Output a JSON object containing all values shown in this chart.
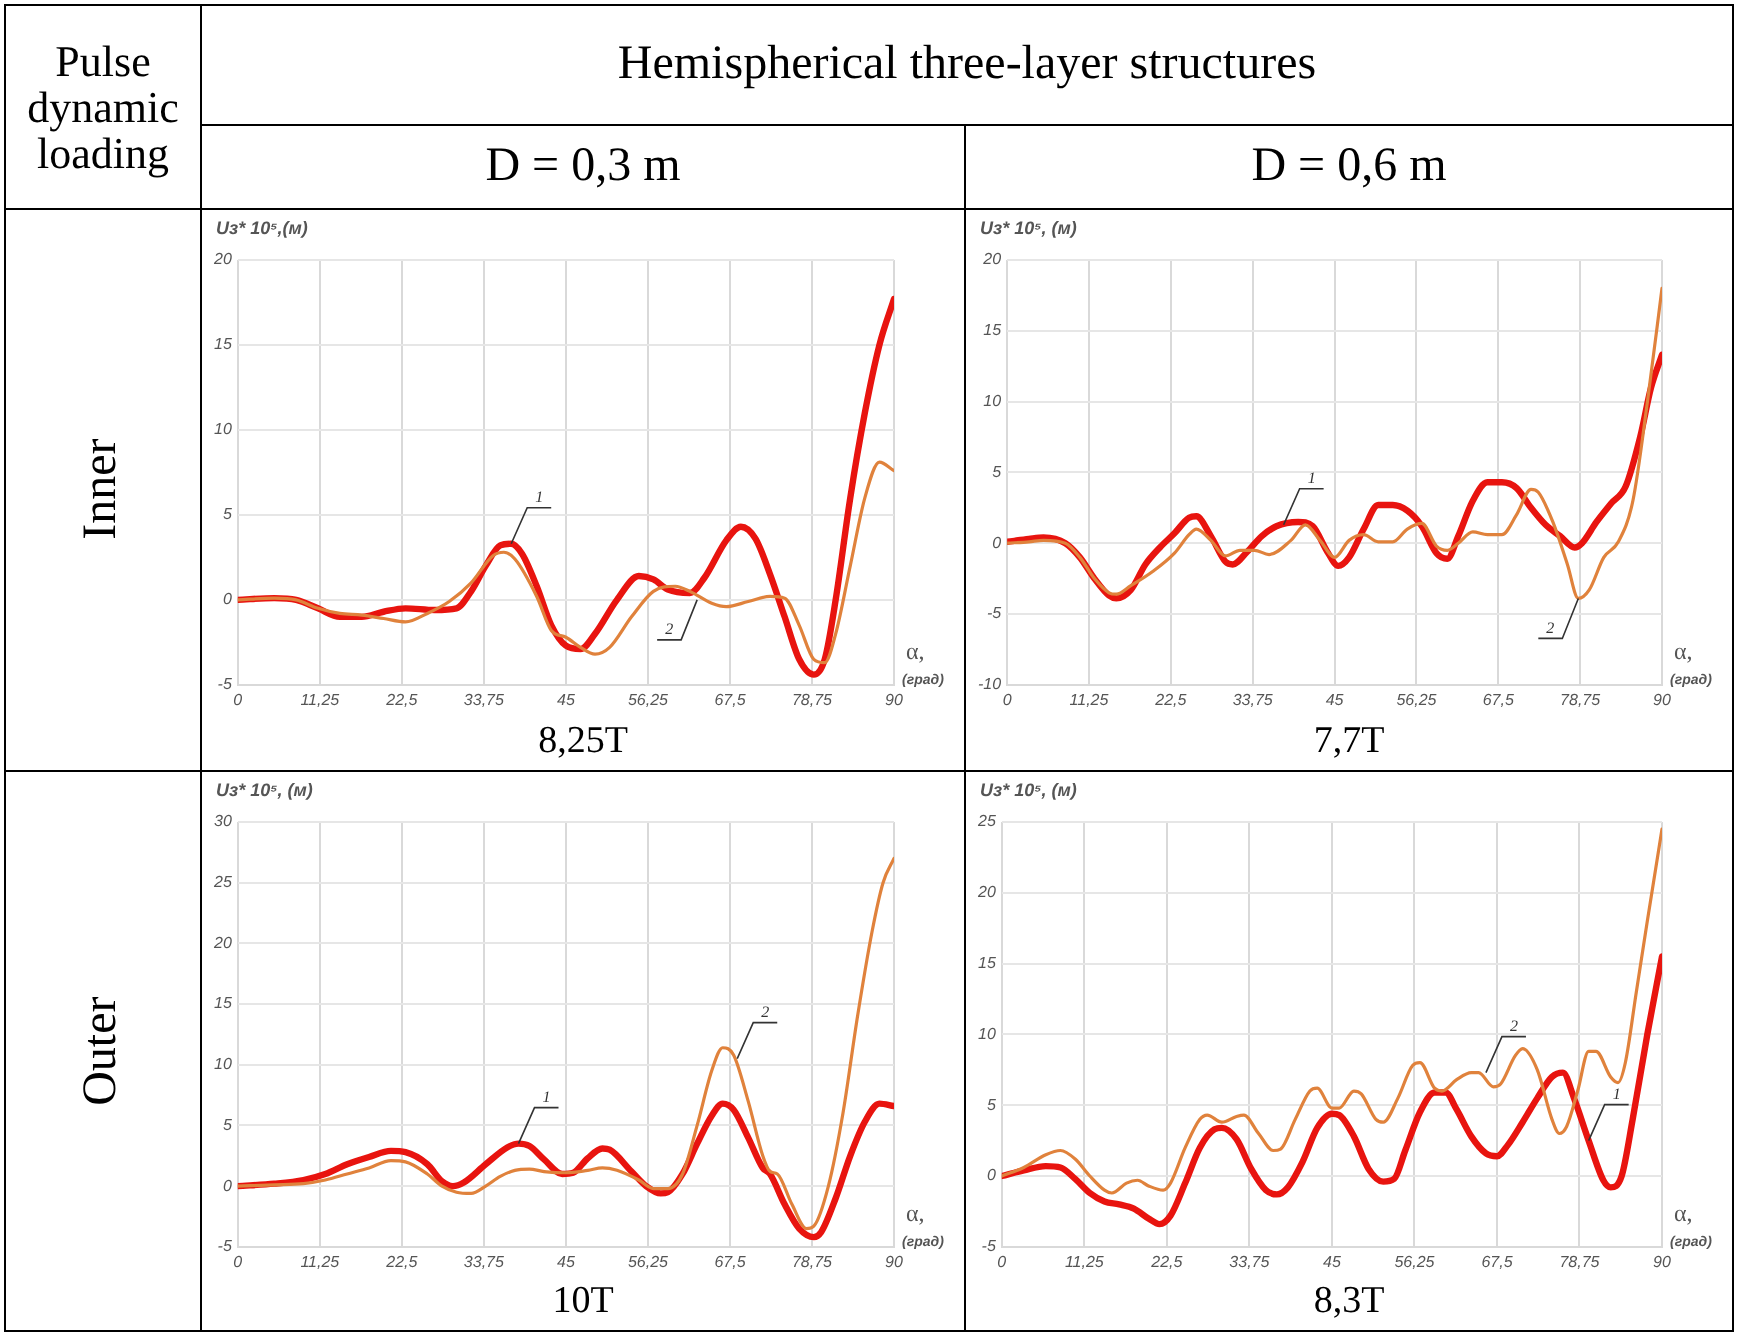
{
  "chart_data": [
    {
      "type": "line",
      "title": "D = 0,3 m",
      "subtitle": "8,25T",
      "ylabel": "Uз* 10⁵,(м)",
      "xlabel": "α, (град)",
      "xlim": [
        0,
        90
      ],
      "ylim": [
        -5,
        20
      ],
      "xticks": [
        0,
        {
          "value": 11.25,
          "label": "11,25"
        },
        {
          "value": 22.5,
          "label": "22,5"
        },
        {
          "value": 33.75,
          "label": "33,75"
        },
        45,
        {
          "value": 56.25,
          "label": "56,25"
        },
        {
          "value": 67.5,
          "label": "67,5"
        },
        {
          "value": 78.75,
          "label": "78,75"
        },
        90
      ],
      "yticks": [
        -5,
        0,
        5,
        10,
        15,
        20
      ],
      "grid": true,
      "legend": false,
      "series": [
        {
          "color": "#e8140f",
          "x": [
            0,
            5,
            8,
            11,
            14,
            17,
            20,
            23,
            27,
            30,
            32,
            34,
            36,
            37.5,
            39,
            41,
            43,
            45,
            47,
            49,
            52,
            55,
            57,
            59,
            62,
            64,
            67,
            69,
            71,
            73,
            75,
            77,
            79,
            80.5,
            82,
            84,
            86,
            88,
            90
          ],
          "values": [
            0,
            0.1,
            0,
            -0.5,
            -1,
            -1,
            -0.7,
            -0.5,
            -0.6,
            -0.5,
            0.5,
            2,
            3.2,
            3.3,
            2.7,
            0.8,
            -1.5,
            -2.7,
            -2.9,
            -2,
            0,
            1.4,
            1.2,
            0.6,
            0.4,
            1.3,
            3.5,
            4.3,
            3.6,
            1.5,
            -1,
            -3.5,
            -4.4,
            -3.5,
            0,
            6,
            11,
            15,
            17.7
          ]
        },
        {
          "color": "#e0823c",
          "x": [
            0,
            5,
            8,
            11,
            14,
            17,
            20,
            23,
            26,
            29,
            32,
            35,
            36.5,
            38,
            41,
            43,
            45,
            47,
            49,
            51,
            54,
            57,
            60,
            62,
            65,
            67,
            70,
            73,
            75,
            77,
            79,
            80.5,
            82,
            84,
            86,
            88,
            90
          ],
          "values": [
            0,
            0.1,
            0,
            -0.5,
            -0.8,
            -0.9,
            -1.1,
            -1.3,
            -0.8,
            -0.1,
            1,
            2.6,
            2.8,
            2.4,
            0.2,
            -1.8,
            -2.2,
            -2.8,
            -3.2,
            -2.8,
            -1,
            0.5,
            0.8,
            0.5,
            -0.2,
            -0.4,
            -0.1,
            0.2,
            0.1,
            -1.5,
            -3.5,
            -3.7,
            -2,
            2,
            6,
            8.1,
            7.6
          ]
        }
      ],
      "annotations": [
        {
          "text": "1",
          "x": 37.5,
          "y": 3.3
        },
        {
          "text": "2",
          "x": 63,
          "y": 0
        },
        "Pulse dynamic loading",
        "Hemispherical three-layer structures",
        "Inner"
      ]
    },
    {
      "type": "line",
      "title": "D = 0,6 m",
      "subtitle": "7,7T",
      "ylabel": "Uз* 10⁵, (м)",
      "xlabel": "α, (град)",
      "xlim": [
        0,
        90
      ],
      "ylim": [
        -10,
        20
      ],
      "xticks": [
        0,
        {
          "value": 11.25,
          "label": "11,25"
        },
        {
          "value": 22.5,
          "label": "22,5"
        },
        {
          "value": 33.75,
          "label": "33,75"
        },
        45,
        {
          "value": 56.25,
          "label": "56,25"
        },
        {
          "value": 67.5,
          "label": "67,5"
        },
        {
          "value": 78.75,
          "label": "78,75"
        },
        90
      ],
      "yticks": [
        -10,
        -5,
        0,
        5,
        10,
        15,
        20
      ],
      "grid": true,
      "legend": false,
      "series": [
        {
          "color": "#e8140f",
          "x": [
            0,
            3,
            5,
            8,
            10,
            12,
            14,
            15,
            17,
            19,
            21,
            23,
            25,
            26,
            28,
            30,
            31,
            33,
            35,
            37,
            40,
            42,
            44,
            45.5,
            47,
            49,
            51,
            53,
            55,
            57,
            59,
            60.5,
            62,
            64,
            66,
            68,
            70,
            72,
            74,
            76,
            78,
            79,
            81,
            83,
            85,
            87,
            88.5,
            90
          ],
          "values": [
            0.1,
            0.3,
            0.4,
            0,
            -1,
            -2.5,
            -3.7,
            -3.9,
            -3.3,
            -1.5,
            -0.3,
            0.7,
            1.8,
            1.9,
            0.5,
            -1.3,
            -1.5,
            -0.6,
            0.5,
            1.2,
            1.5,
            1.2,
            -0.6,
            -1.6,
            -1,
            1,
            2.7,
            2.7,
            2.3,
            1.2,
            -0.7,
            -1.1,
            0.5,
            3,
            4.3,
            4.3,
            3.9,
            2.5,
            1.3,
            0.5,
            -0.3,
            0,
            1.5,
            2.8,
            4,
            7.5,
            11,
            13.3
          ]
        },
        {
          "color": "#e0823c",
          "x": [
            0,
            3,
            5,
            8,
            10,
            12,
            14,
            15,
            17,
            20,
            23,
            25,
            26,
            28,
            30,
            32,
            34,
            36,
            39,
            41,
            43,
            45,
            47,
            49,
            51,
            53,
            55,
            57,
            59,
            60.5,
            62,
            64,
            66,
            68,
            70,
            72,
            73,
            75,
            77,
            78.5,
            80,
            82,
            84,
            86,
            88,
            90
          ],
          "values": [
            0,
            0.1,
            0.2,
            0,
            -1,
            -2.5,
            -3.5,
            -3.6,
            -3,
            -2,
            -0.7,
            0.6,
            1,
            0.2,
            -0.9,
            -0.5,
            -0.5,
            -0.8,
            0.2,
            1.3,
            0.2,
            -1,
            0.2,
            0.6,
            0.1,
            0.1,
            1,
            1.4,
            -0.2,
            -0.5,
            0,
            0.8,
            0.6,
            0.6,
            2,
            3.8,
            3.6,
            1.5,
            -1.5,
            -3.9,
            -3.3,
            -1,
            0.1,
            3,
            10,
            18
          ]
        }
      ],
      "annotations": [
        {
          "text": "1",
          "x": 38,
          "y": 1.3
        },
        {
          "text": "2",
          "x": 78.5,
          "y": -3.9
        }
      ]
    },
    {
      "type": "line",
      "subtitle": "10T",
      "ylabel": "Uз* 10⁵, (м)",
      "xlabel": "α, (град)",
      "xlim": [
        0,
        90
      ],
      "ylim": [
        -5,
        30
      ],
      "xticks": [
        0,
        {
          "value": 11.25,
          "label": "11,25"
        },
        {
          "value": 22.5,
          "label": "22,5"
        },
        {
          "value": 33.75,
          "label": "33,75"
        },
        45,
        {
          "value": 56.25,
          "label": "56,25"
        },
        {
          "value": 67.5,
          "label": "67,5"
        },
        {
          "value": 78.75,
          "label": "78,75"
        },
        90
      ],
      "yticks": [
        -5,
        0,
        5,
        10,
        15,
        20,
        25,
        30
      ],
      "grid": true,
      "legend": false,
      "series": [
        {
          "color": "#e8140f",
          "x": [
            0,
            5,
            9,
            12,
            15,
            18,
            21,
            23,
            26,
            28,
            29.5,
            31,
            34,
            37,
            38.5,
            40,
            42,
            44.5,
            46,
            48,
            50,
            51,
            54,
            56,
            58,
            59,
            61,
            63,
            65,
            66.5,
            68,
            70,
            72,
            73,
            75,
            77,
            79,
            80,
            82,
            84,
            86,
            88,
            90
          ],
          "values": [
            0,
            0.2,
            0.5,
            1,
            1.8,
            2.4,
            2.9,
            2.8,
            1.8,
            0.4,
            0,
            0.3,
            1.8,
            3.2,
            3.5,
            3.3,
            2.2,
            1,
            1.1,
            2.3,
            3.1,
            3,
            1.2,
            0,
            -0.6,
            -0.5,
            1,
            3.5,
            5.8,
            6.8,
            6.3,
            4,
            1.5,
            1,
            -1.5,
            -3.5,
            -4.2,
            -3.8,
            -1,
            2.5,
            5.3,
            6.8,
            6.6
          ]
        },
        {
          "color": "#e0823c",
          "x": [
            0,
            5,
            9,
            12,
            15,
            18,
            21,
            23,
            26,
            28,
            30,
            32,
            34,
            36,
            38,
            40,
            42,
            45,
            48,
            50,
            52,
            55,
            57,
            59,
            61,
            63,
            65,
            66.5,
            68,
            70,
            72,
            73,
            74,
            76,
            78,
            79,
            81,
            83,
            85,
            87,
            88.5,
            90
          ],
          "values": [
            0,
            0.1,
            0.2,
            0.5,
            1,
            1.5,
            2.1,
            2,
            1,
            0,
            -0.5,
            -0.6,
            0,
            0.8,
            1.3,
            1.4,
            1.2,
            1.1,
            1.3,
            1.5,
            1.3,
            0.5,
            -0.2,
            -0.2,
            1,
            5,
            9.5,
            11.4,
            10.8,
            7,
            2.5,
            1.2,
            1,
            -1.5,
            -3.5,
            -3.3,
            0,
            6,
            14,
            21,
            25,
            27
          ]
        }
      ],
      "annotations": [
        {
          "text": "1",
          "x": 38.5,
          "y": 3.5
        },
        {
          "text": "2",
          "x": 68.5,
          "y": 10.5
        },
        "Outer"
      ]
    },
    {
      "type": "line",
      "subtitle": "8,3T",
      "ylabel": "Uз* 10⁵, (м)",
      "xlabel": "α, (град)",
      "xlim": [
        0,
        90
      ],
      "ylim": [
        -5,
        25
      ],
      "xticks": [
        0,
        {
          "value": 11.25,
          "label": "11,25"
        },
        {
          "value": 22.5,
          "label": "22,5"
        },
        {
          "value": 33.75,
          "label": "33,75"
        },
        45,
        {
          "value": 56.25,
          "label": "56,25"
        },
        {
          "value": 67.5,
          "label": "67,5"
        },
        {
          "value": 78.75,
          "label": "78,75"
        },
        90
      ],
      "yticks": [
        -5,
        0,
        5,
        10,
        15,
        20,
        25
      ],
      "grid": true,
      "legend": false,
      "series": [
        {
          "color": "#e8140f",
          "x": [
            0,
            3,
            6,
            8,
            10,
            12,
            14,
            16,
            18,
            20,
            21.5,
            23,
            25,
            27,
            29,
            30,
            32,
            34,
            36,
            37.5,
            39,
            41,
            43,
            45,
            46,
            48,
            50,
            52,
            53.5,
            55,
            57,
            59,
            60.5,
            62,
            64,
            66,
            67.5,
            69,
            71,
            73,
            75,
            76.5,
            78,
            80,
            82,
            83,
            84.5,
            86,
            88,
            90
          ],
          "values": [
            0,
            0.4,
            0.7,
            0.6,
            -0.2,
            -1.2,
            -1.8,
            -2,
            -2.3,
            -3,
            -3.4,
            -2.8,
            -0.5,
            2,
            3.3,
            3.4,
            2.6,
            0.5,
            -1,
            -1.3,
            -0.8,
            1,
            3.4,
            4.4,
            4.3,
            2.8,
            0.5,
            -0.4,
            -0.2,
            1.8,
            4.5,
            5.9,
            5.9,
            4.7,
            2.8,
            1.6,
            1.4,
            2.2,
            3.8,
            5.5,
            7,
            7.3,
            5.5,
            2.5,
            -0.3,
            -0.8,
            0,
            4,
            10,
            15.5
          ]
        },
        {
          "color": "#e0823c",
          "x": [
            0,
            3,
            6,
            8,
            10,
            12,
            14,
            15,
            17,
            18.5,
            20,
            22,
            23,
            25,
            27,
            28,
            30,
            32,
            33,
            35,
            37,
            38,
            40,
            42,
            43,
            45,
            46,
            48,
            49,
            51,
            52,
            54,
            56,
            57,
            59,
            60,
            62,
            64,
            65,
            67,
            68,
            70,
            71,
            73,
            75,
            76,
            77,
            78.5,
            80,
            81,
            83,
            84,
            85,
            86.5,
            88,
            90
          ],
          "values": [
            0,
            0.6,
            1.5,
            1.8,
            1.2,
            0,
            -1,
            -1.2,
            -0.5,
            -0.3,
            -0.7,
            -1,
            -0.5,
            2,
            4,
            4.3,
            3.8,
            4.2,
            4.3,
            3,
            1.8,
            1.9,
            4,
            6,
            6.2,
            4.8,
            4.8,
            6,
            5.8,
            4,
            3.8,
            5.5,
            7.8,
            8,
            6.2,
            6,
            6.8,
            7.3,
            7.3,
            6.3,
            6.5,
            8.5,
            9,
            7.5,
            4,
            3,
            3.5,
            6,
            8.8,
            8.8,
            7,
            6.6,
            8,
            13,
            18,
            24.5
          ]
        }
      ],
      "annotations": [
        {
          "text": "2",
          "x": 66,
          "y": 7.3
        },
        {
          "text": "1",
          "x": 80,
          "y": 2.5
        }
      ]
    }
  ]
}
